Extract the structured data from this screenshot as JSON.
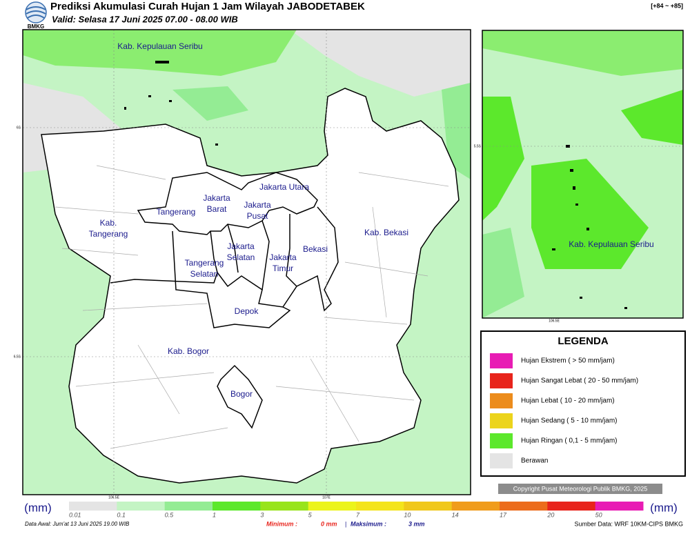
{
  "header": {
    "logo": "BMKG",
    "title": "Prediksi Akumulasi Curah Hujan 1 Jam Wilayah JABODETABEK",
    "valid": "Valid: Selasa 17 Juni 2025 07.00 - 08.00 WIB",
    "range": "[+84 ~ +85]"
  },
  "map": {
    "regions": [
      [
        "Kab. Kepulauan Seribu"
      ],
      [
        "Jakarta Utara"
      ],
      [
        "Jakarta",
        "Barat"
      ],
      [
        "Jakarta",
        "Pusat"
      ],
      [
        "Tangerang"
      ],
      [
        "Kab.",
        "Tangerang"
      ],
      [
        "Kab. Bekasi"
      ],
      [
        "Jakarta",
        "Selatan"
      ],
      [
        "Bekasi"
      ],
      [
        "Jakarta",
        "Timur"
      ],
      [
        "Tangerang",
        "Selatan"
      ],
      [
        "Depok"
      ],
      [
        "Kab. Bogor"
      ],
      [
        "Bogor"
      ]
    ],
    "lat_labels": [
      "6S",
      "6.5S"
    ],
    "lon_labels": [
      "106.5E",
      "107E"
    ]
  },
  "inset": {
    "region": "Kab. Kepulauan Seribu",
    "lat_label": "5.5S",
    "lon_label": "106.5E"
  },
  "legend": {
    "title": "LEGENDA",
    "items": [
      {
        "label": "Hujan Ekstrem ( > 50 mm/jam)",
        "color": "#e81cb4"
      },
      {
        "label": "Hujan Sangat Lebat ( 20 - 50 mm/jam)",
        "color": "#e8241c"
      },
      {
        "label": "Hujan Lebat ( 10 - 20 mm/jam)",
        "color": "#ec8c1c"
      },
      {
        "label": "Hujan Sedang ( 5 - 10 mm/jam)",
        "color": "#ecd41c"
      },
      {
        "label": "Hujan Ringan ( 0,1 - 5 mm/jam)",
        "color": "#5ce82c"
      },
      {
        "label": "Berawan",
        "color": "#e4e4e4"
      }
    ]
  },
  "copyright": "Copyright Pusat Meteorologi Publik BMKG, 2025",
  "colorbar": {
    "unit": "(mm)",
    "ticks": [
      0.01,
      0.1,
      0.5,
      1,
      3,
      5,
      7,
      10,
      14,
      17,
      20,
      50
    ],
    "colors": [
      "#e4e4e4",
      "#c4f4c4",
      "#94ec94",
      "#5ce82c",
      "#98e41c",
      "#ecf41c",
      "#f4e41c",
      "#f0c81c",
      "#f09c1c",
      "#ec6c1c",
      "#e8241c",
      "#e81cb4"
    ]
  },
  "footer": {
    "start": "Data Awal: Jum'at 13 Juni 2025 19.00 WIB",
    "min_label": "Minimum :",
    "min": "0 mm",
    "sep": "|",
    "max_label": "Maksimum :",
    "max": "3 mm",
    "source": "Sumber Data: WRF 10KM-CIPS BMKG"
  }
}
